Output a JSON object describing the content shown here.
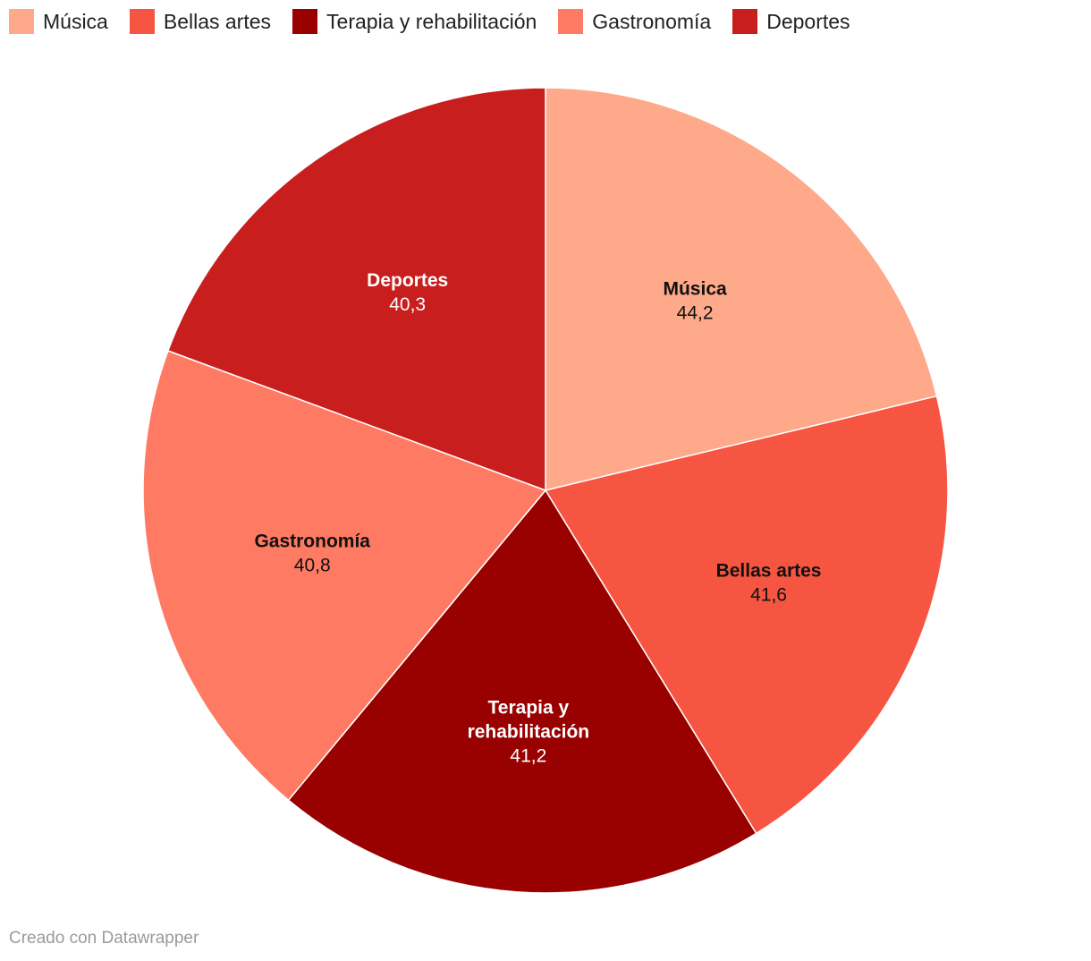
{
  "chart_data": {
    "type": "pie",
    "title": "",
    "legend_position": "top-left",
    "categories": [
      "Música",
      "Bellas artes",
      "Terapia y rehabilitación",
      "Gastronomía",
      "Deportes"
    ],
    "values": [
      44.2,
      41.6,
      41.2,
      40.8,
      40.3
    ],
    "value_labels": [
      "44,2",
      "41,6",
      "41,2",
      "40,8",
      "40,3"
    ],
    "colors": [
      "#fea98a",
      "#f65542",
      "#990000",
      "#ff7a63",
      "#c81e1e"
    ],
    "label_text_colors": [
      "#111111",
      "#111111",
      "#ffffff",
      "#111111",
      "#ffffff"
    ],
    "slice_label_lines": [
      [
        "Música"
      ],
      [
        "Bellas artes"
      ],
      [
        "Terapia y",
        "rehabilitación"
      ],
      [
        "Gastronomía"
      ],
      [
        "Deportes"
      ]
    ]
  },
  "legend": {
    "items": [
      "Música",
      "Bellas artes",
      "Terapia y rehabilitación",
      "Gastronomía",
      "Deportes"
    ]
  },
  "footer": {
    "credit": "Creado con Datawrapper"
  }
}
